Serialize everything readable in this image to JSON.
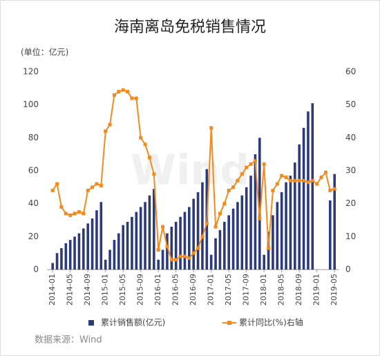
{
  "chart_data": {
    "type": "bar",
    "title": "海南离岛免税销售情况",
    "unit_label": "(单位：亿元)",
    "source": "数据来源：Wind",
    "categories": [
      "2014-01",
      null,
      null,
      null,
      "2014-05",
      null,
      null,
      null,
      "2014-09",
      null,
      null,
      null,
      "2015-01",
      null,
      null,
      null,
      "2015-05",
      null,
      null,
      null,
      "2015-09",
      null,
      null,
      null,
      "2016-01",
      null,
      null,
      null,
      "2016-05",
      null,
      null,
      null,
      "2016-09",
      null,
      null,
      null,
      "2017-01",
      null,
      null,
      null,
      "2017-05",
      null,
      null,
      null,
      "2017-09",
      null,
      null,
      null,
      "2018-01",
      null,
      null,
      null,
      "2018-05",
      null,
      null,
      null,
      "2018-09",
      null,
      null,
      null,
      "2019-01",
      null,
      null,
      null,
      "2019-05"
    ],
    "series": [
      {
        "name": "累计销售额(亿元)",
        "type": "bar",
        "color": "#2b3a7a",
        "values": [
          4,
          10,
          13,
          16,
          18,
          20,
          22,
          25,
          28,
          31,
          36,
          41,
          6,
          12,
          18,
          22,
          27,
          29,
          32,
          35,
          38,
          41,
          45,
          49,
          6,
          12,
          22,
          26,
          29,
          32,
          35,
          38,
          43,
          47,
          53,
          61,
          9,
          19,
          24,
          29,
          33,
          37,
          41,
          45,
          50,
          57,
          70,
          80,
          9,
          23,
          33,
          41,
          47,
          53,
          57,
          65,
          76,
          86,
          96,
          101,
          null,
          null,
          null,
          42,
          58
        ]
      },
      {
        "name": "累计同比(%)右轴",
        "type": "line",
        "axis": "y2",
        "color": "#f28a1e",
        "values": [
          24,
          26,
          19,
          17,
          16.5,
          17,
          17.5,
          17,
          24,
          25,
          26,
          25.5,
          42,
          44,
          53,
          54,
          54.5,
          54,
          52,
          52,
          40,
          38,
          34,
          29,
          6,
          13,
          7,
          3,
          3,
          4,
          4,
          3.5,
          5,
          6.5,
          10,
          14,
          43,
          13,
          17,
          20,
          24,
          25,
          27,
          29,
          31,
          32,
          33,
          15.5,
          32,
          6.5,
          24,
          26,
          28.5,
          28,
          27,
          27,
          27,
          27,
          26.5,
          27,
          26,
          28,
          29.5,
          24,
          24.5
        ]
      }
    ],
    "ylim": [
      0,
      120
    ],
    "yticks": [
      0,
      20,
      40,
      60,
      80,
      100,
      120
    ],
    "y2lim": [
      0,
      60
    ],
    "y2ticks": [
      0,
      10,
      20,
      30,
      40,
      50,
      60
    ],
    "grid": false
  }
}
